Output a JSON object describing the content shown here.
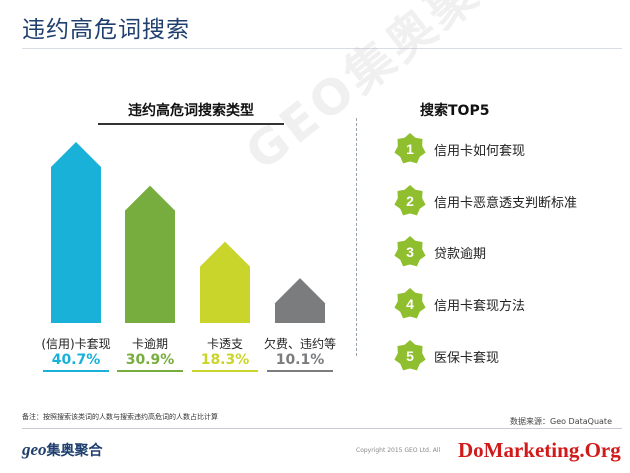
{
  "header": {
    "title": "违约高危词搜索"
  },
  "watermark": "GEO集奥聚合",
  "chart_data": {
    "type": "bar",
    "title": "违约高危词搜索类型",
    "categories": [
      "(信用)卡套现",
      "卡逾期",
      "卡透支",
      "欠费、违约等"
    ],
    "values": [
      40.7,
      30.9,
      18.3,
      10.1
    ],
    "value_labels": [
      "40.7%",
      "30.9%",
      "18.3%",
      "10.1%"
    ],
    "colors": [
      "#1ab1d8",
      "#77ad3f",
      "#c9d52a",
      "#7b7c7e"
    ],
    "ylim": [
      0,
      45
    ],
    "grid": false,
    "legend": "none"
  },
  "top5": {
    "title": "搜索TOP5",
    "badge_color": "#8fbf2e",
    "items": [
      {
        "rank": "1",
        "label": "信用卡如何套现"
      },
      {
        "rank": "2",
        "label": "信用卡恶意透支判断标准"
      },
      {
        "rank": "3",
        "label": "贷款逾期"
      },
      {
        "rank": "4",
        "label": "信用卡套现方法"
      },
      {
        "rank": "5",
        "label": "医保卡套现"
      }
    ]
  },
  "footer": {
    "note": "备注：按照搜索该类词的人数与搜索违约高危词的人数占比计算",
    "source": "数据来源：Geo DataQuate",
    "copyright": "Copyright 2015 GEO Ltd. All",
    "logo_prefix": "geo",
    "logo_text": "集奥聚合",
    "site_logo": "DoMarketing.Org"
  }
}
